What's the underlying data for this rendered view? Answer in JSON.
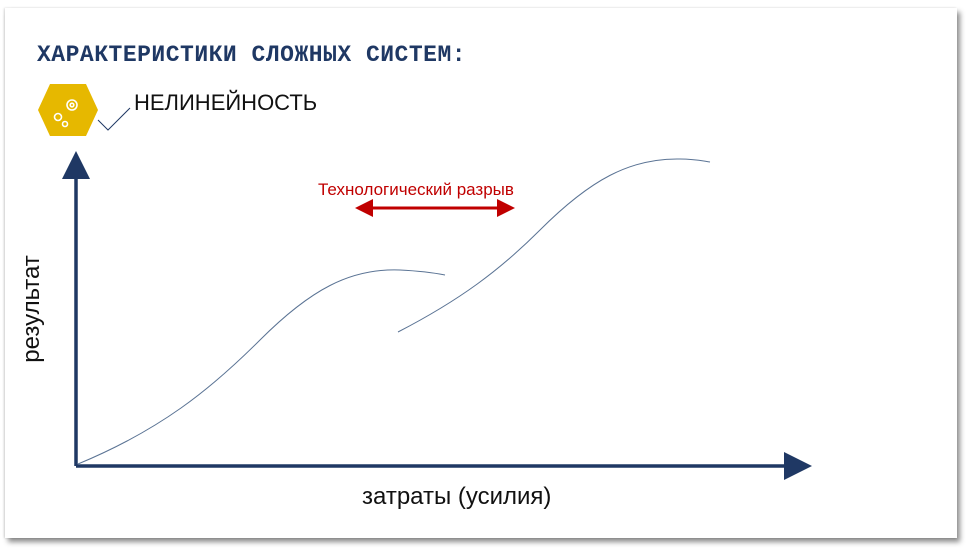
{
  "slide": {
    "title": "ХАРАКТЕРИСТИКИ СЛОЖНЫХ СИСТЕМ:",
    "subtitle": "НЕЛИНЕЙНОСТЬ",
    "icon": "gears-icon",
    "gap_label": "Технологический разрыв",
    "y_axis_label": "результат",
    "x_axis_label": "затраты (усилия)",
    "colors": {
      "title": "#1f3864",
      "hexagon": "#e6b800",
      "axes": "#1f3864",
      "curves": "#5a7394",
      "gap_arrow": "#c00000"
    }
  }
}
